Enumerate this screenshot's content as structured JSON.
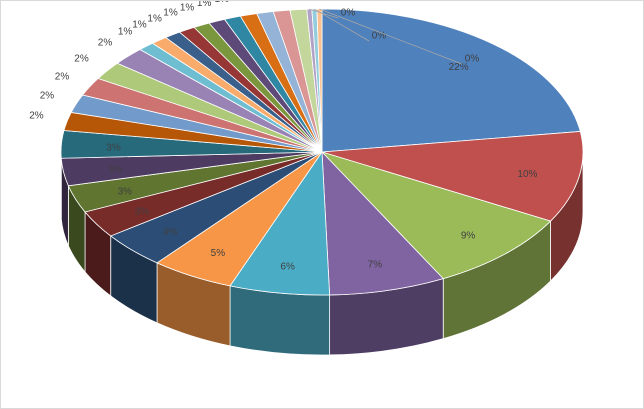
{
  "chart_data": {
    "type": "pie",
    "title": "",
    "legend": "none",
    "style": "3d",
    "labels": [
      "22%",
      "10%",
      "9%",
      "7%",
      "6%",
      "5%",
      "4%",
      "3%",
      "3%",
      "3%",
      "3%",
      "2%",
      "2%",
      "2%",
      "2%",
      "2%",
      "1%",
      "1%",
      "1%",
      "1%",
      "1%",
      "1%",
      "1%",
      "1%",
      "1%",
      "1%",
      "1%",
      "0%",
      "0%",
      "0%"
    ],
    "values": [
      22,
      10,
      9,
      7,
      6,
      5,
      4,
      3,
      3,
      3,
      3,
      2,
      2,
      2,
      2,
      2,
      1,
      1,
      1,
      1,
      1,
      1,
      1,
      1,
      1,
      1,
      1,
      0.3,
      0.3,
      0.3
    ],
    "colors": [
      "#4f81bd",
      "#c0504d",
      "#9bbb59",
      "#8064a2",
      "#4bacc6",
      "#f79646",
      "#2c4d75",
      "#772c2a",
      "#5f7530",
      "#4d3b62",
      "#276a7c",
      "#b65708",
      "#729aca",
      "#cd7371",
      "#afc97a",
      "#9983b5",
      "#6fbdd1",
      "#f9ab6b",
      "#3a5f8a",
      "#963735",
      "#7a973d",
      "#5d4a79",
      "#3087a3",
      "#d86f14",
      "#95b3d7",
      "#d99694",
      "#c3d69b",
      "#b3a2c7",
      "#93cddd",
      "#fac090"
    ]
  }
}
